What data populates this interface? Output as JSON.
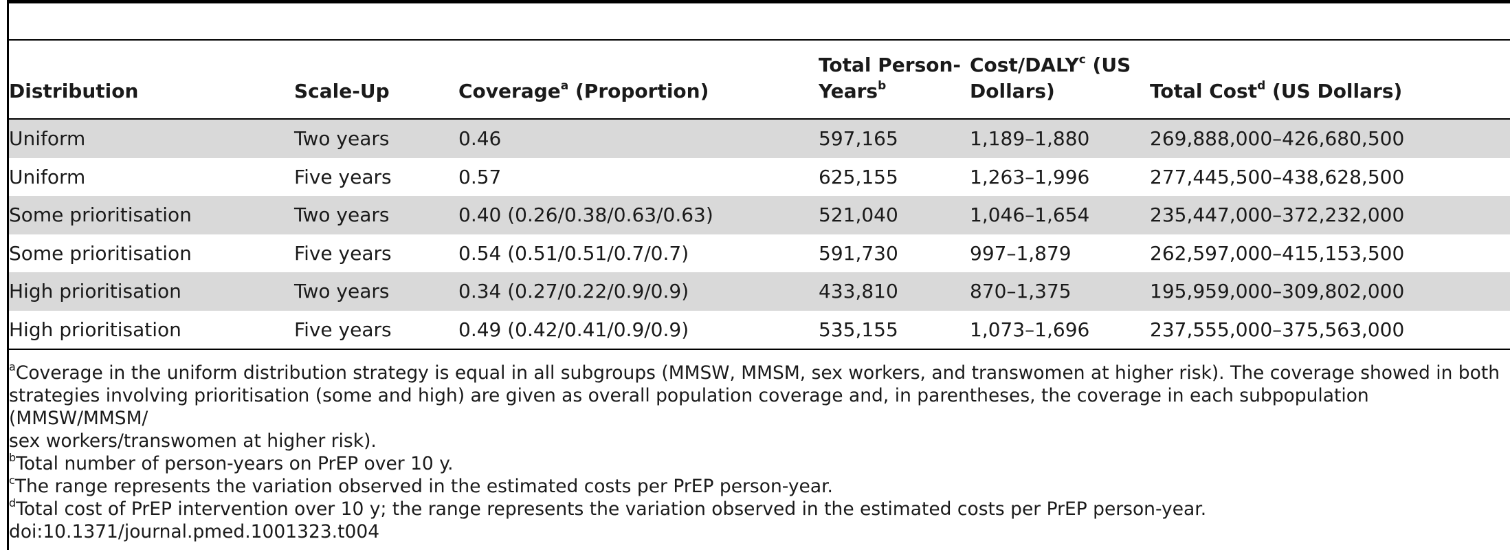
{
  "table": {
    "headers": {
      "distribution": "Distribution",
      "scale_up": "Scale-Up",
      "coverage_main": "Coverage",
      "coverage_sup": "a",
      "coverage_rest": " (Proportion)",
      "person_years_line1": "Total Person-",
      "person_years_line2": "Years",
      "person_years_sup": "b",
      "cost_daly_line1a": "Cost/DALY",
      "cost_daly_sup": "c",
      "cost_daly_line1b": " (US",
      "cost_daly_line2": "Dollars)",
      "total_cost_main": "Total Cost",
      "total_cost_sup": "d",
      "total_cost_rest": " (US Dollars)"
    },
    "rows": [
      {
        "distribution": "Uniform",
        "scale_up": "Two years",
        "coverage": "0.46",
        "person_years": "597,165",
        "cost_daly": "1,189–1,880",
        "total_cost": "269,888,000–426,680,500"
      },
      {
        "distribution": "Uniform",
        "scale_up": "Five years",
        "coverage": "0.57",
        "person_years": "625,155",
        "cost_daly": "1,263–1,996",
        "total_cost": "277,445,500–438,628,500"
      },
      {
        "distribution": "Some prioritisation",
        "scale_up": "Two years",
        "coverage": "0.40 (0.26/0.38/0.63/0.63)",
        "person_years": "521,040",
        "cost_daly": "1,046–1,654",
        "total_cost": "235,447,000–372,232,000"
      },
      {
        "distribution": "Some prioritisation",
        "scale_up": "Five years",
        "coverage": "0.54 (0.51/0.51/0.7/0.7)",
        "person_years": "591,730",
        "cost_daly": "997–1,879",
        "total_cost": "262,597,000–415,153,500"
      },
      {
        "distribution": "High prioritisation",
        "scale_up": "Two years",
        "coverage": "0.34 (0.27/0.22/0.9/0.9)",
        "person_years": "433,810",
        "cost_daly": "870–1,375",
        "total_cost": "195,959,000–309,802,000"
      },
      {
        "distribution": "High prioritisation",
        "scale_up": "Five years",
        "coverage": "0.49 (0.42/0.41/0.9/0.9)",
        "person_years": "535,155",
        "cost_daly": "1,073–1,696",
        "total_cost": "237,555,000–375,563,000"
      }
    ]
  },
  "footnotes": {
    "a_marker": "a",
    "a_line1": "Coverage in the uniform distribution strategy is equal in all subgroups (MMSW, MMSM, sex workers, and transwomen at higher risk). The coverage showed in both",
    "a_line2": "strategies involving prioritisation (some and high) are given as overall population coverage and, in parentheses, the coverage in each subpopulation (MMSW/MMSM/",
    "a_line3": "sex workers/transwomen at higher risk).",
    "b_marker": "b",
    "b_text": "Total number of person-years on PrEP over 10 y.",
    "c_marker": "c",
    "c_text": "The range represents the variation observed in the estimated costs per PrEP person-year.",
    "d_marker": "d",
    "d_text": "Total cost of PrEP intervention over 10 y; the range represents the variation observed in the estimated costs per PrEP person-year.",
    "doi": "doi:10.1371/journal.pmed.1001323.t004"
  }
}
